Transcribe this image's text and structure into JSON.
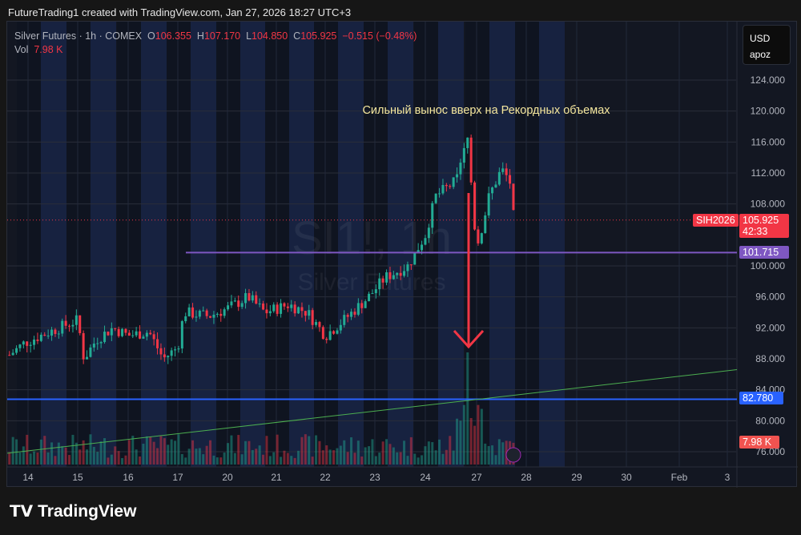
{
  "credit": "FutureTrading1 created with TradingView.com, Jan 27, 2026 18:27 UTC+3",
  "legend": {
    "symbol": "Silver Futures · 1h · COMEX",
    "o_label": "O",
    "o": "106.355",
    "h_label": "H",
    "h": "107.170",
    "l_label": "L",
    "l": "104.850",
    "c_label": "C",
    "c": "105.925",
    "change": "−0.515 (−0.48%)",
    "vol_label": "Vol",
    "vol": "7.98 K"
  },
  "currency_box": {
    "currency": "USD",
    "unit": "apoz"
  },
  "watermark": {
    "ticker": "SI1!, 1h",
    "name": "Silver Futures"
  },
  "annotation": "Сильный вынос вверх на Рекордных объемах",
  "price_tags": {
    "symbol": "SIH2026",
    "last": "105.925",
    "countdown": "42:33",
    "purple_line": "101.715",
    "blue_line": "82.780",
    "volume": "7.98 K"
  },
  "logo": "TradingView",
  "colors": {
    "up": "#22ab94",
    "down": "#f23645",
    "purple": "#7e57c2",
    "blue": "#2962ff",
    "trend": "#4caf50",
    "annotation": "#f5e79e"
  },
  "chart_data": {
    "type": "candlestick",
    "title": "Silver Futures · 1h · COMEX",
    "y_ticks": [
      "124.000",
      "120.000",
      "116.000",
      "112.000",
      "108.000",
      "100.000",
      "96.000",
      "92.000",
      "88.000",
      "84.000",
      "80.000",
      "76.000"
    ],
    "ylim": [
      76,
      124
    ],
    "x_ticks": [
      "14",
      "15",
      "16",
      "17",
      "20",
      "21",
      "22",
      "23",
      "24",
      "27",
      "28",
      "29",
      "30",
      "Feb",
      "3"
    ],
    "price_path": [
      [
        "13 15",
        88.5
      ],
      [
        "13 22",
        90
      ],
      [
        "14 6",
        91
      ],
      [
        "14 15",
        92
      ],
      [
        "15 0",
        93
      ],
      [
        "15 3",
        88
      ],
      [
        "15 9",
        90.5
      ],
      [
        "15 17",
        92
      ],
      [
        "16 0",
        91
      ],
      [
        "16 10",
        91.5
      ],
      [
        "16 17",
        88
      ],
      [
        "17 0",
        89.5
      ],
      [
        "17 3",
        94
      ],
      [
        "17 15",
        93.5
      ],
      [
        "20 0",
        94.5
      ],
      [
        "20 10",
        96
      ],
      [
        "20 18",
        94
      ],
      [
        "21 6",
        95
      ],
      [
        "21 15",
        94
      ],
      [
        "22 0",
        91
      ],
      [
        "22 9",
        93
      ],
      [
        "22 21",
        96
      ],
      [
        "23 5",
        98.5
      ],
      [
        "23 16",
        100
      ],
      [
        "24 0",
        104
      ],
      [
        "24 5",
        109
      ],
      [
        "24 15",
        111
      ],
      [
        "24 21",
        117
      ],
      [
        "24 23",
        106
      ],
      [
        "27 1",
        103
      ],
      [
        "27 6",
        109
      ],
      [
        "27 12",
        112.5
      ],
      [
        "27 16",
        111
      ],
      [
        "27 18",
        105.925
      ]
    ],
    "horizontal_lines": [
      {
        "value": 101.715,
        "color": "purple"
      },
      {
        "value": 82.78,
        "color": "blue"
      }
    ],
    "trendline": [
      [
        "13 0",
        75.8
      ],
      [
        "Feb 3",
        86.5
      ]
    ],
    "last_price": 105.925
  }
}
